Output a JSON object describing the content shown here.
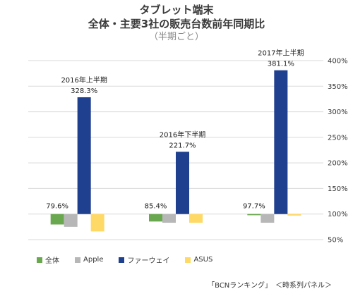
{
  "header": {
    "title_line1": "タブレット端末",
    "title_line2": "全体・主要3社の販売台数前年同期比",
    "subtitle": "（半期ごと）"
  },
  "footer": {
    "source": "「BCNランキング」　＜時系列パネル＞"
  },
  "chart_data": {
    "type": "bar",
    "baseline": 100,
    "ylim": [
      50,
      400
    ],
    "yticks": [
      50,
      100,
      150,
      200,
      250,
      300,
      350,
      400
    ],
    "ytick_labels": [
      "50%",
      "100%",
      "150%",
      "200%",
      "250%",
      "300%",
      "350%",
      "400%"
    ],
    "y_axis_position": "right",
    "grid": true,
    "legend_position": "bottom",
    "categories": [
      "2016年上半期",
      "2016年下半期",
      "2017年上半期"
    ],
    "series": [
      {
        "name": "全体",
        "color": "#6aa84f",
        "values": [
          79.6,
          85.4,
          97.7
        ]
      },
      {
        "name": "Apple",
        "color": "#b7b7b7",
        "values": [
          75,
          83,
          83
        ]
      },
      {
        "name": "ファーウェイ",
        "color": "#1f3f8f",
        "values": [
          328.3,
          221.7,
          381.1
        ]
      },
      {
        "name": "ASUS",
        "color": "#ffd966",
        "values": [
          66,
          83,
          97
        ]
      }
    ],
    "value_labels": [
      {
        "category": 0,
        "series": 0,
        "text": "79.6%"
      },
      {
        "category": 0,
        "series": 2,
        "text": "328.3%"
      },
      {
        "category": 1,
        "series": 0,
        "text": "85.4%"
      },
      {
        "category": 1,
        "series": 2,
        "text": "221.7%"
      },
      {
        "category": 2,
        "series": 0,
        "text": "97.7%"
      },
      {
        "category": 2,
        "series": 2,
        "text": "381.1%"
      }
    ]
  }
}
